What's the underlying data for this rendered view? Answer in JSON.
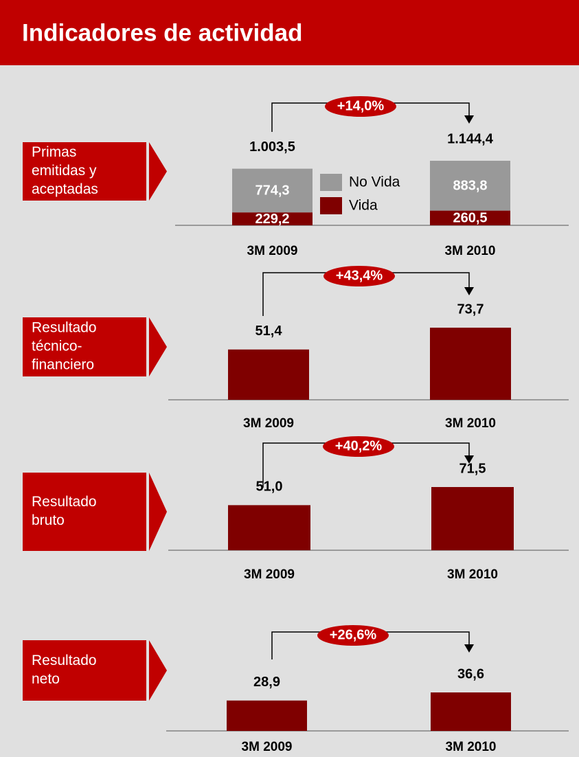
{
  "title": "Indicadores de actividad",
  "chart_data": [
    {
      "type": "bar",
      "stacked": true,
      "label": [
        "Primas",
        "emitidas y",
        "aceptadas"
      ],
      "categories": [
        "3M 2009",
        "3M 2010"
      ],
      "series": [
        {
          "name": "Vida",
          "color": "#7f0000",
          "values": [
            229.2,
            260.5
          ],
          "value_labels": [
            "229,2",
            "260,5"
          ]
        },
        {
          "name": "No Vida",
          "color": "#999999",
          "values": [
            774.3,
            883.8
          ],
          "value_labels": [
            "774,3",
            "883,8"
          ]
        }
      ],
      "totals": [
        1003.5,
        1144.4
      ],
      "total_labels": [
        "1.003,5",
        "1.144,4"
      ],
      "growth": "+14,0%"
    },
    {
      "type": "bar",
      "label": [
        "Resultado",
        "técnico-",
        "financiero"
      ],
      "categories": [
        "3M 2009",
        "3M 2010"
      ],
      "color": "#7f0000",
      "values": [
        51.4,
        73.7
      ],
      "value_labels": [
        "51,4",
        "73,7"
      ],
      "growth": "+43,4%"
    },
    {
      "type": "bar",
      "label": [
        "Resultado",
        "bruto"
      ],
      "categories": [
        "3M 2009",
        "3M 2010"
      ],
      "color": "#7f0000",
      "values": [
        51.0,
        71.5
      ],
      "value_labels": [
        "51,0",
        "71,5"
      ],
      "growth": "+40,2%"
    },
    {
      "type": "bar",
      "label": [
        "Resultado",
        "neto"
      ],
      "categories": [
        "3M 2009",
        "3M 2010"
      ],
      "color": "#7f0000",
      "values": [
        28.9,
        36.6
      ],
      "value_labels": [
        "28,9",
        "36,6"
      ],
      "growth": "+26,6%"
    }
  ]
}
